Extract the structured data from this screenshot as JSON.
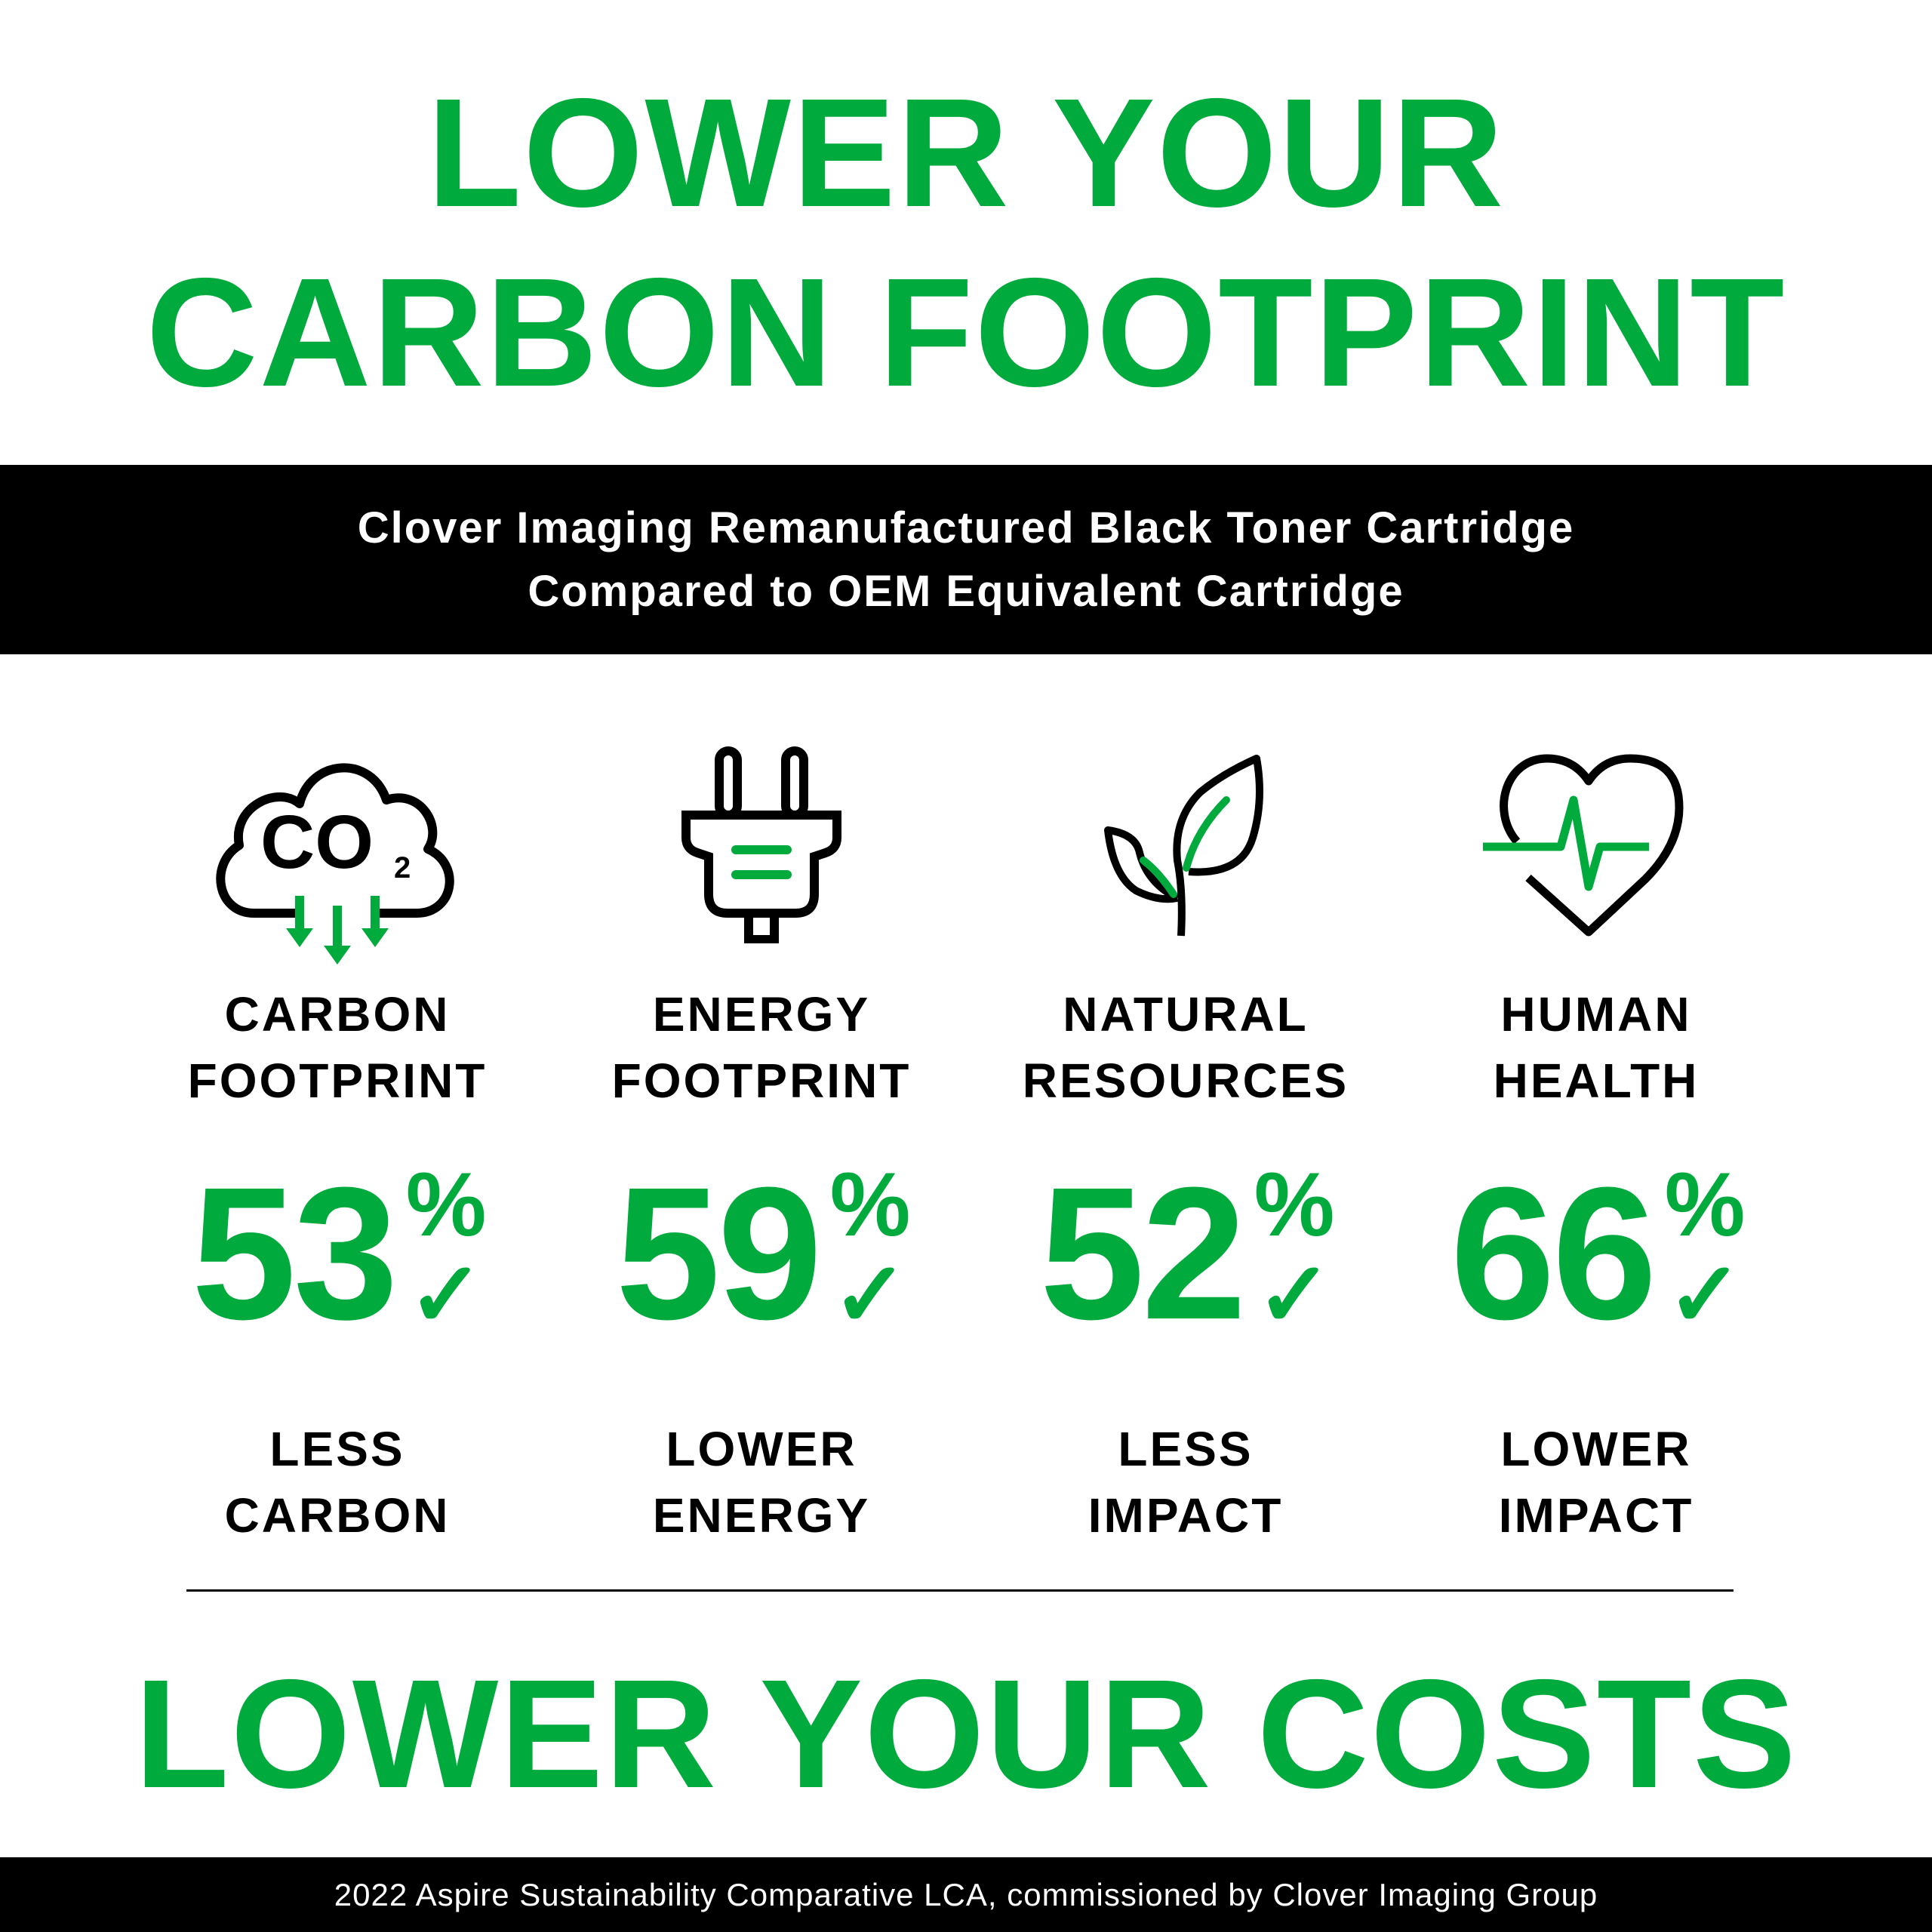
{
  "header": {
    "line1": "LOWER YOUR",
    "line2": "CARBON FOOTPRINT"
  },
  "band": {
    "line1": "Clover Imaging Remanufactured Black Toner Cartridge",
    "line2": "Compared to OEM Equivalent Cartridge"
  },
  "metrics": [
    {
      "icon": "co2-cloud-icon",
      "label1": "CARBON",
      "label2": "FOOTPRINT",
      "value": "53",
      "unit": "%",
      "desc1": "LESS",
      "desc2": "CARBON"
    },
    {
      "icon": "plug-icon",
      "label1": "ENERGY",
      "label2": "FOOTPRINT",
      "value": "59",
      "unit": "%",
      "desc1": "LOWER",
      "desc2": "ENERGY"
    },
    {
      "icon": "leaf-sprout-icon",
      "label1": "NATURAL",
      "label2": "RESOURCES",
      "value": "52",
      "unit": "%",
      "desc1": "LESS",
      "desc2": "IMPACT"
    },
    {
      "icon": "heart-pulse-icon",
      "label1": "HUMAN",
      "label2": "HEALTH",
      "value": "66",
      "unit": "%",
      "desc1": "LOWER",
      "desc2": "IMPACT"
    }
  ],
  "footer_headline": "LOWER YOUR COSTS",
  "footer_note": "2022 Aspire Sustainability Comparative LCA, commissioned by Clover Imaging Group",
  "colors": {
    "accent": "#00aa3c",
    "band": "#000000",
    "text": "#000000"
  }
}
